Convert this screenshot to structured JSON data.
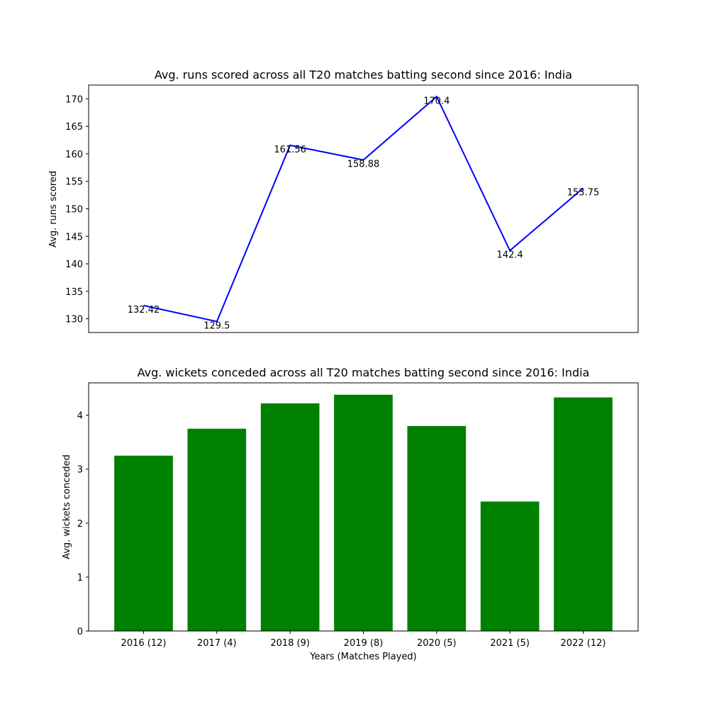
{
  "chart_data": [
    {
      "type": "line",
      "title": "Avg. runs scored across all T20 matches batting second since 2016: India",
      "xlabel": "",
      "ylabel": "Avg. runs scored",
      "categories": [
        "2016 (12)",
        "2017 (4)",
        "2018 (9)",
        "2019 (8)",
        "2020 (5)",
        "2021 (5)",
        "2022 (12)"
      ],
      "values": [
        132.42,
        129.5,
        161.56,
        158.88,
        170.4,
        142.4,
        153.75
      ],
      "data_labels": [
        "132.42",
        "129.5",
        "161.56",
        "158.88",
        "170.4",
        "142.4",
        "153.75"
      ],
      "ylim": [
        127.5,
        172.5
      ],
      "yticks": [
        130,
        135,
        140,
        145,
        150,
        155,
        160,
        165,
        170
      ],
      "show_xticks": false,
      "line_color": "#0000ff",
      "grid": false,
      "legend": "none"
    },
    {
      "type": "bar",
      "title": "Avg. wickets conceded across all T20 matches batting second since 2016: India",
      "xlabel": "Years (Matches Played)",
      "ylabel": "Avg. wickets conceded",
      "categories": [
        "2016 (12)",
        "2017 (4)",
        "2018 (9)",
        "2019 (8)",
        "2020 (5)",
        "2021 (5)",
        "2022 (12)"
      ],
      "values": [
        3.25,
        3.75,
        4.22,
        4.38,
        3.8,
        2.4,
        4.33
      ],
      "ylim": [
        0,
        4.6
      ],
      "yticks": [
        0,
        1,
        2,
        3,
        4
      ],
      "bar_color": "#008000",
      "grid": false,
      "legend": "none"
    }
  ]
}
